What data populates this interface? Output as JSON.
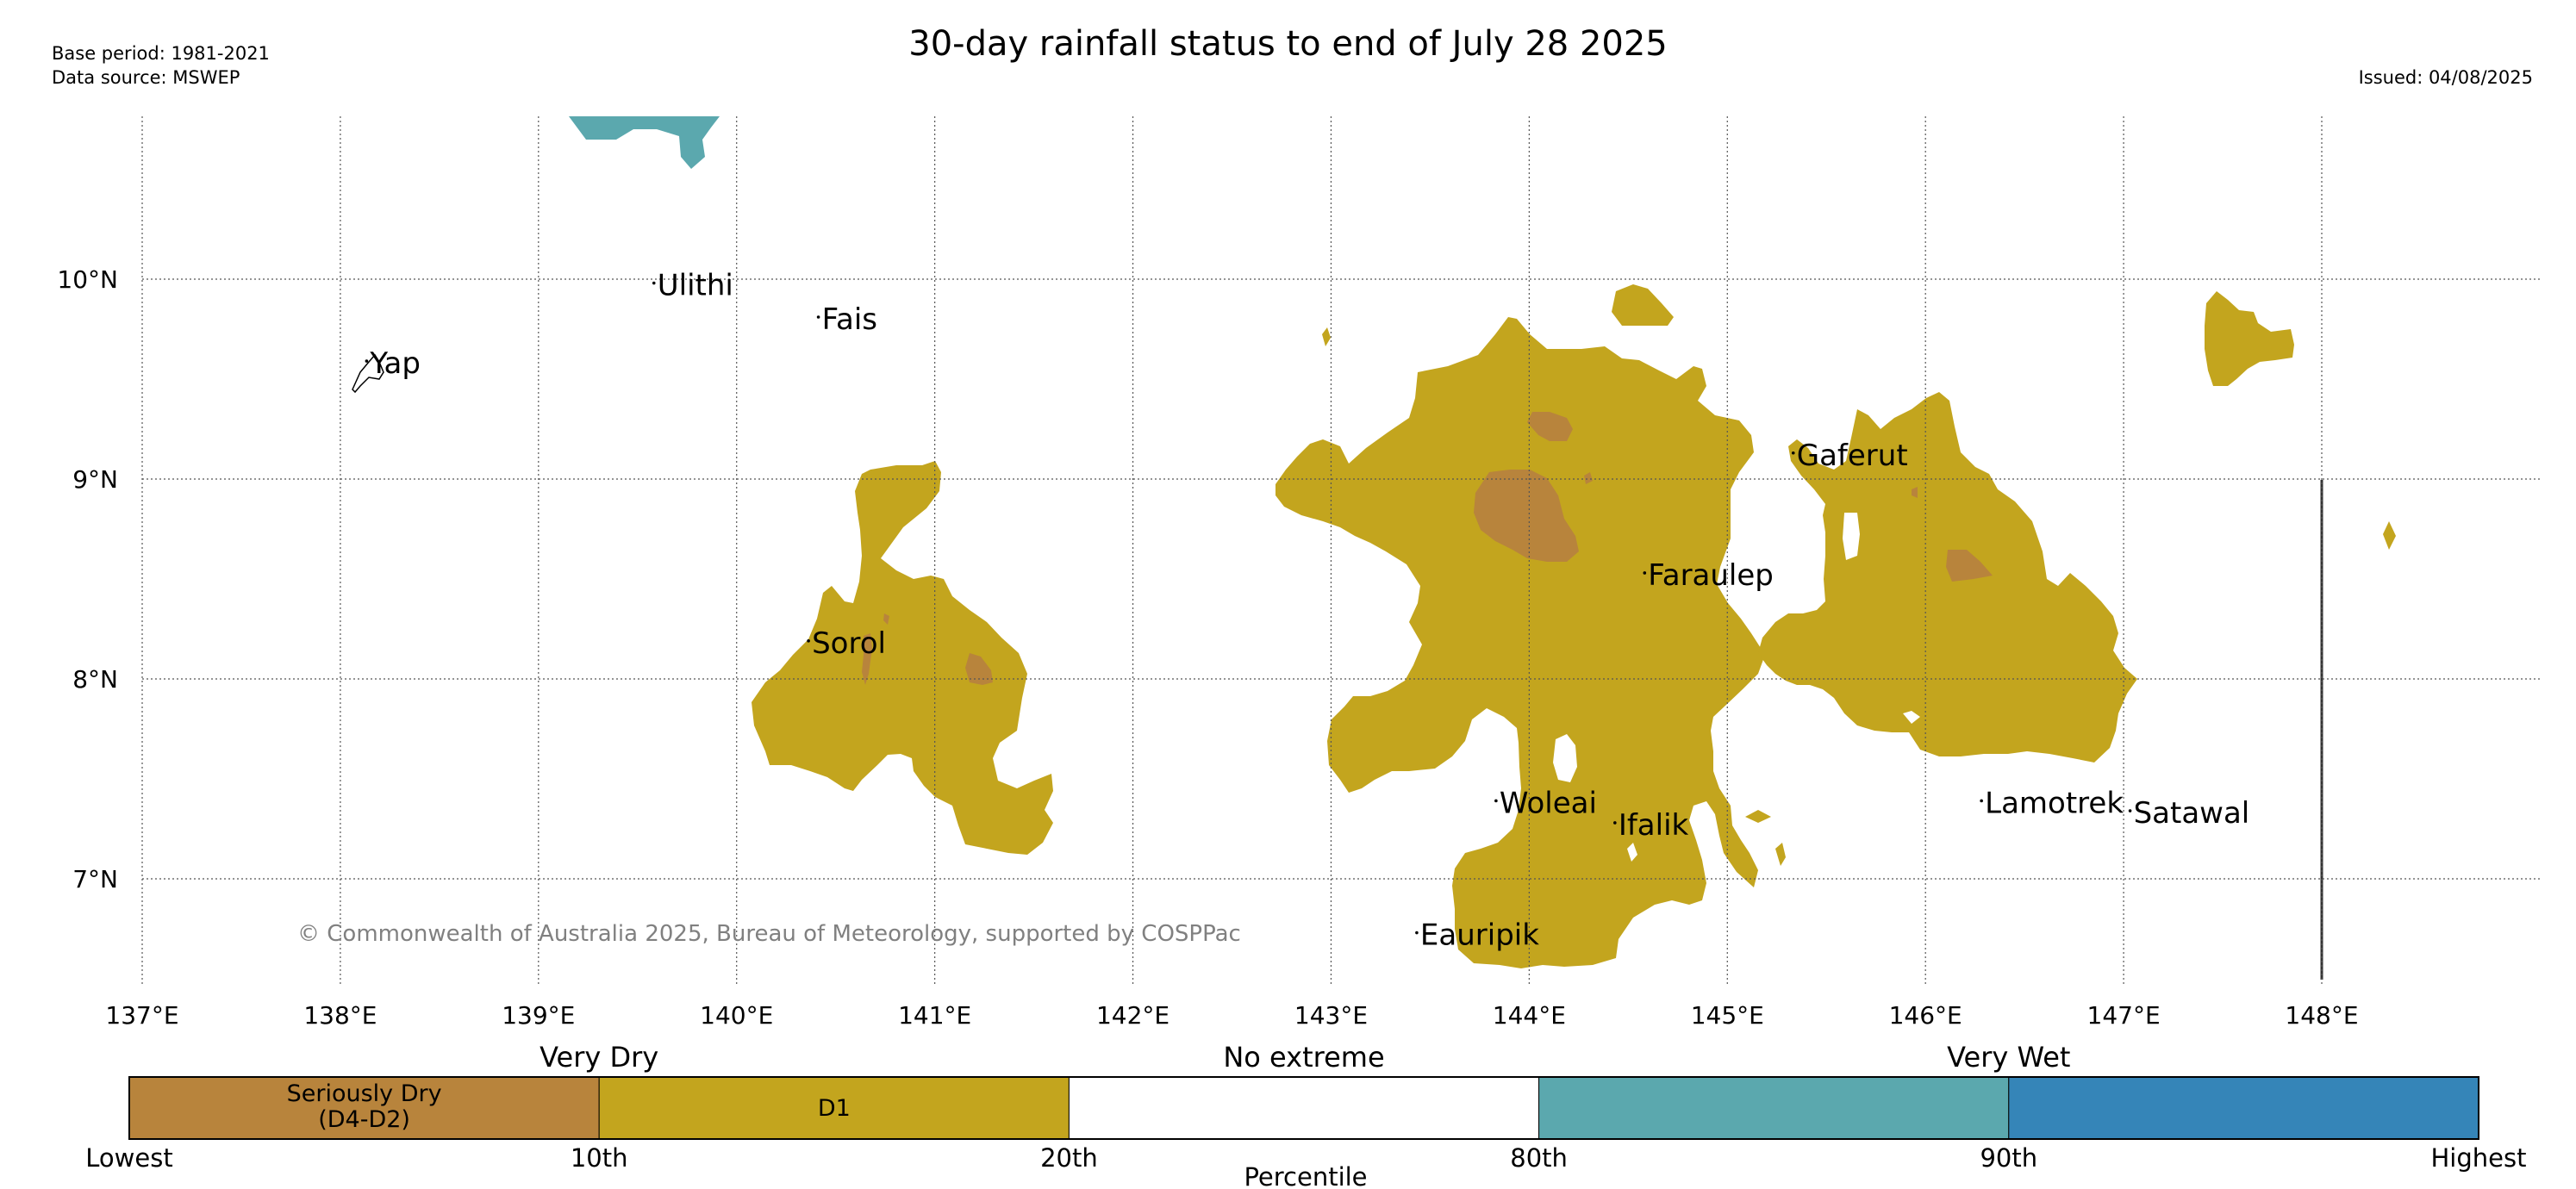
{
  "header": {
    "base_period": "Base period: 1981-2021",
    "data_source": "Data source: MSWEP",
    "title": "30-day rainfall status to end of July 28 2025",
    "issued": "Issued: 04/08/2025"
  },
  "map": {
    "lon_range": [
      136.95,
      148.95
    ],
    "lat_range": [
      6.55,
      10.8
    ],
    "lon_ticks": [
      {
        "value": 137,
        "label": "137°E"
      },
      {
        "value": 138,
        "label": "138°E"
      },
      {
        "value": 139,
        "label": "139°E"
      },
      {
        "value": 140,
        "label": "140°E"
      },
      {
        "value": 141,
        "label": "141°E"
      },
      {
        "value": 142,
        "label": "142°E"
      },
      {
        "value": 143,
        "label": "143°E"
      },
      {
        "value": 144,
        "label": "144°E"
      },
      {
        "value": 145,
        "label": "145°E"
      },
      {
        "value": 146,
        "label": "146°E"
      },
      {
        "value": 147,
        "label": "147°E"
      },
      {
        "value": 148,
        "label": "148°E"
      }
    ],
    "lat_ticks": [
      {
        "value": 10,
        "label": "10°N"
      },
      {
        "value": 9,
        "label": "9°N"
      },
      {
        "value": 8,
        "label": "8°N"
      },
      {
        "value": 7,
        "label": "7°N"
      }
    ],
    "places": [
      {
        "name": "Yap",
        "lon": 138.15,
        "lat": 9.53
      },
      {
        "name": "Ulithi",
        "lon": 139.6,
        "lat": 9.92
      },
      {
        "name": "Fais",
        "lon": 140.43,
        "lat": 9.75
      },
      {
        "name": "Sorol",
        "lon": 140.38,
        "lat": 8.13
      },
      {
        "name": "Gaferut",
        "lon": 145.35,
        "lat": 9.07
      },
      {
        "name": "Faraulep",
        "lon": 144.6,
        "lat": 8.47
      },
      {
        "name": "Woleai",
        "lon": 143.85,
        "lat": 7.33
      },
      {
        "name": "Ifalik",
        "lon": 144.45,
        "lat": 7.22
      },
      {
        "name": "Lamotrek",
        "lon": 146.3,
        "lat": 7.33
      },
      {
        "name": "Satawal",
        "lon": 147.05,
        "lat": 7.28
      },
      {
        "name": "Eauripik",
        "lon": 143.45,
        "lat": 6.67
      }
    ],
    "copyright": "© Commonwealth of Australia 2025, Bureau of Meteorology, supported by COSPPac"
  },
  "colors": {
    "seriously_dry": "#b8843c",
    "d1": "#c3a51e",
    "no_extreme": "#ffffff",
    "wet": "#5ba8ae",
    "very_wet": "#3585b8",
    "grid": "#555555"
  },
  "colorbar": {
    "top_labels": [
      "Very Dry",
      "No extreme",
      "Very Wet"
    ],
    "segments": [
      {
        "label_line1": "Seriously Dry",
        "label_line2": "(D4-D2)",
        "color": "#b8843c"
      },
      {
        "label_line1": "",
        "label_line2": "D1",
        "color": "#c3a51e"
      },
      {
        "label_line1": "",
        "label_line2": "",
        "color": "#ffffff"
      },
      {
        "label_line1": "",
        "label_line2": "",
        "color": "#5ba8ae"
      },
      {
        "label_line1": "",
        "label_line2": "",
        "color": "#3585b8"
      }
    ],
    "tick_labels": [
      "Lowest",
      "10th",
      "20th",
      "80th",
      "90th",
      "Highest"
    ],
    "axis_label": "Percentile"
  }
}
